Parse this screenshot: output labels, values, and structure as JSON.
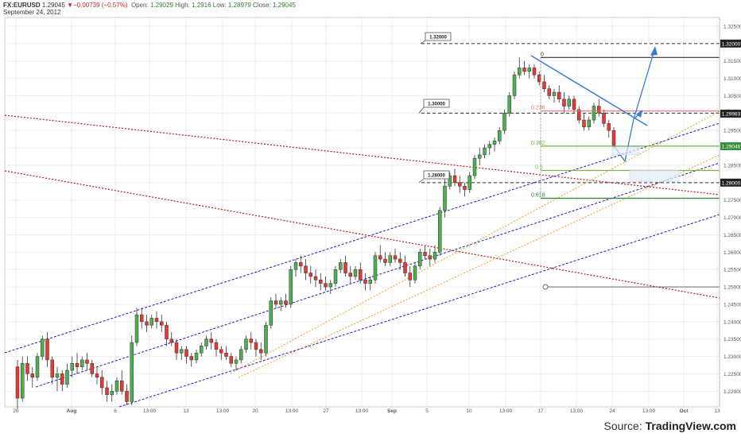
{
  "header": {
    "symbol": "FX:EURUSD",
    "last": "1.29045",
    "change": "▼−0.00739 (−0.57%)",
    "open_label": "Open:",
    "open": "1.29029",
    "high_label": "High:",
    "high": "1.2916",
    "low_label": "Low:",
    "low": "1.28979",
    "close_label": "Close:",
    "close": "1.29045",
    "date": "September 24, 2012"
  },
  "source": {
    "prefix": "Source: ",
    "brand": "TradingView.com"
  },
  "colors": {
    "bull": "#4caf50",
    "bear": "#e53935",
    "price_up_tag": "#388e3c",
    "channel": "#1a1acc",
    "red_dotted": "#b71c1c",
    "orange_dotted": "#f0a020",
    "trend": "#3a7bd5",
    "fib_red": "#e57373",
    "fib_green": "#7cb342",
    "fib_dkgreen": "#2e7d32",
    "grid": "#eeeeee"
  },
  "chart_data": {
    "type": "candlestick",
    "title": "",
    "ylim": [
      1.2155,
      1.3275
    ],
    "y_ticks": [
      "1.32500",
      "1.32000",
      "1.31500",
      "1.31000",
      "1.30500",
      "1.30000",
      "1.29500",
      "1.29000",
      "1.28500",
      "1.28000",
      "1.27500",
      "1.27000",
      "1.26500",
      "1.26000",
      "1.25500",
      "1.25000",
      "1.24500",
      "1.24000",
      "1.23500",
      "1.23000",
      "1.22500",
      "1.22000"
    ],
    "x_ticks": [
      "26",
      "Aug",
      "6",
      "13:00",
      "13",
      "13:00",
      "20",
      "13:00",
      "27",
      "13:00",
      "Sep",
      "5",
      "10",
      "13:00",
      "17",
      "13:00",
      "24",
      "13:00",
      "Oct",
      "13"
    ],
    "price_tags": [
      {
        "value": 1.32,
        "label": "1.32000",
        "style": "dark"
      },
      {
        "value": 1.29983,
        "label": "1.29983",
        "style": "dark"
      },
      {
        "value": 1.29046,
        "label": "1.29046",
        "style": "green"
      },
      {
        "value": 1.28,
        "label": "1.28000",
        "style": "dark"
      }
    ],
    "level_callouts": [
      {
        "value": 1.32,
        "label": "1.32000"
      },
      {
        "value": 1.3,
        "label": "1.30000"
      },
      {
        "value": 1.28,
        "label": "1.28000"
      }
    ],
    "fib_levels": [
      {
        "label": "0",
        "value": 1.316
      },
      {
        "label": "0.236",
        "value": 1.3006
      },
      {
        "label": "0.382",
        "value": 1.2905
      },
      {
        "label": "0.5",
        "value": 1.2835
      },
      {
        "label": "0.618",
        "value": 1.2755
      }
    ],
    "annotations": [
      {
        "label": "1.25000",
        "value": 1.25
      }
    ],
    "candles": [
      [
        1.227,
        1.229,
        1.215,
        1.218
      ],
      [
        1.218,
        1.23,
        1.217,
        1.228
      ],
      [
        1.228,
        1.23,
        1.223,
        1.225
      ],
      [
        1.225,
        1.227,
        1.221,
        1.224
      ],
      [
        1.224,
        1.231,
        1.223,
        1.23
      ],
      [
        1.23,
        1.236,
        1.229,
        1.235
      ],
      [
        1.235,
        1.237,
        1.227,
        1.229
      ],
      [
        1.229,
        1.23,
        1.222,
        1.224
      ],
      [
        1.224,
        1.227,
        1.22,
        1.225
      ],
      [
        1.225,
        1.226,
        1.22,
        1.222
      ],
      [
        1.222,
        1.228,
        1.221,
        1.226
      ],
      [
        1.226,
        1.23,
        1.224,
        1.228
      ],
      [
        1.228,
        1.231,
        1.225,
        1.227
      ],
      [
        1.227,
        1.23,
        1.226,
        1.229
      ],
      [
        1.229,
        1.231,
        1.226,
        1.228
      ],
      [
        1.228,
        1.229,
        1.224,
        1.225
      ],
      [
        1.225,
        1.227,
        1.222,
        1.224
      ],
      [
        1.224,
        1.226,
        1.219,
        1.221
      ],
      [
        1.221,
        1.223,
        1.217,
        1.219
      ],
      [
        1.219,
        1.222,
        1.217,
        1.22
      ],
      [
        1.22,
        1.224,
        1.219,
        1.223
      ],
      [
        1.223,
        1.226,
        1.219,
        1.22
      ],
      [
        1.22,
        1.222,
        1.216,
        1.217
      ],
      [
        1.217,
        1.236,
        1.216,
        1.234
      ],
      [
        1.234,
        1.244,
        1.233,
        1.242
      ],
      [
        1.242,
        1.244,
        1.238,
        1.24
      ],
      [
        1.24,
        1.242,
        1.237,
        1.239
      ],
      [
        1.239,
        1.242,
        1.238,
        1.241
      ],
      [
        1.241,
        1.243,
        1.238,
        1.24
      ],
      [
        1.24,
        1.242,
        1.237,
        1.239
      ],
      [
        1.239,
        1.24,
        1.233,
        1.235
      ],
      [
        1.235,
        1.237,
        1.233,
        1.234
      ],
      [
        1.234,
        1.235,
        1.229,
        1.231
      ],
      [
        1.231,
        1.233,
        1.229,
        1.232
      ],
      [
        1.232,
        1.233,
        1.228,
        1.23
      ],
      [
        1.23,
        1.231,
        1.227,
        1.229
      ],
      [
        1.229,
        1.232,
        1.228,
        1.231
      ],
      [
        1.231,
        1.234,
        1.23,
        1.233
      ],
      [
        1.233,
        1.236,
        1.232,
        1.235
      ],
      [
        1.235,
        1.237,
        1.232,
        1.234
      ],
      [
        1.234,
        1.235,
        1.23,
        1.232
      ],
      [
        1.232,
        1.233,
        1.229,
        1.231
      ],
      [
        1.231,
        1.233,
        1.229,
        1.23
      ],
      [
        1.23,
        1.231,
        1.227,
        1.228
      ],
      [
        1.228,
        1.23,
        1.226,
        1.229
      ],
      [
        1.229,
        1.233,
        1.228,
        1.232
      ],
      [
        1.232,
        1.236,
        1.231,
        1.235
      ],
      [
        1.235,
        1.237,
        1.232,
        1.234
      ],
      [
        1.234,
        1.235,
        1.23,
        1.232
      ],
      [
        1.232,
        1.234,
        1.229,
        1.231
      ],
      [
        1.231,
        1.24,
        1.23,
        1.239
      ],
      [
        1.239,
        1.247,
        1.238,
        1.246
      ],
      [
        1.246,
        1.248,
        1.244,
        1.245
      ],
      [
        1.245,
        1.247,
        1.243,
        1.246
      ],
      [
        1.246,
        1.248,
        1.244,
        1.245
      ],
      [
        1.245,
        1.256,
        1.244,
        1.255
      ],
      [
        1.255,
        1.258,
        1.253,
        1.257
      ],
      [
        1.257,
        1.259,
        1.254,
        1.256
      ],
      [
        1.256,
        1.258,
        1.252,
        1.254
      ],
      [
        1.254,
        1.256,
        1.251,
        1.253
      ],
      [
        1.253,
        1.255,
        1.25,
        1.252
      ],
      [
        1.252,
        1.254,
        1.249,
        1.251
      ],
      [
        1.251,
        1.253,
        1.249,
        1.25
      ],
      [
        1.25,
        1.252,
        1.248,
        1.251
      ],
      [
        1.251,
        1.256,
        1.25,
        1.255
      ],
      [
        1.255,
        1.258,
        1.254,
        1.257
      ],
      [
        1.257,
        1.259,
        1.253,
        1.254
      ],
      [
        1.254,
        1.256,
        1.251,
        1.253
      ],
      [
        1.253,
        1.256,
        1.252,
        1.255
      ],
      [
        1.255,
        1.257,
        1.251,
        1.252
      ],
      [
        1.252,
        1.254,
        1.249,
        1.251
      ],
      [
        1.251,
        1.253,
        1.249,
        1.252
      ],
      [
        1.252,
        1.26,
        1.251,
        1.259
      ],
      [
        1.259,
        1.262,
        1.257,
        1.258
      ],
      [
        1.258,
        1.26,
        1.256,
        1.257
      ],
      [
        1.257,
        1.26,
        1.256,
        1.259
      ],
      [
        1.259,
        1.261,
        1.257,
        1.258
      ],
      [
        1.258,
        1.26,
        1.255,
        1.257
      ],
      [
        1.257,
        1.259,
        1.253,
        1.254
      ],
      [
        1.254,
        1.256,
        1.25,
        1.252
      ],
      [
        1.252,
        1.257,
        1.251,
        1.256
      ],
      [
        1.256,
        1.261,
        1.255,
        1.26
      ],
      [
        1.26,
        1.262,
        1.258,
        1.259
      ],
      [
        1.259,
        1.261,
        1.256,
        1.258
      ],
      [
        1.258,
        1.262,
        1.257,
        1.26
      ],
      [
        1.26,
        1.273,
        1.259,
        1.272
      ],
      [
        1.272,
        1.281,
        1.27,
        1.279
      ],
      [
        1.279,
        1.283,
        1.278,
        1.282
      ],
      [
        1.282,
        1.284,
        1.279,
        1.28
      ],
      [
        1.28,
        1.282,
        1.277,
        1.279
      ],
      [
        1.279,
        1.28,
        1.276,
        1.278
      ],
      [
        1.278,
        1.283,
        1.277,
        1.282
      ],
      [
        1.282,
        1.288,
        1.281,
        1.287
      ],
      [
        1.287,
        1.29,
        1.285,
        1.288
      ],
      [
        1.288,
        1.291,
        1.287,
        1.29
      ],
      [
        1.29,
        1.292,
        1.288,
        1.291
      ],
      [
        1.291,
        1.293,
        1.289,
        1.292
      ],
      [
        1.292,
        1.296,
        1.291,
        1.295
      ],
      [
        1.295,
        1.301,
        1.294,
        1.3
      ],
      [
        1.3,
        1.306,
        1.299,
        1.305
      ],
      [
        1.305,
        1.312,
        1.304,
        1.311
      ],
      [
        1.311,
        1.316,
        1.31,
        1.313
      ],
      [
        1.313,
        1.315,
        1.311,
        1.312
      ],
      [
        1.312,
        1.314,
        1.31,
        1.313
      ],
      [
        1.313,
        1.314,
        1.31,
        1.311
      ],
      [
        1.311,
        1.312,
        1.308,
        1.309
      ],
      [
        1.309,
        1.311,
        1.306,
        1.307
      ],
      [
        1.307,
        1.308,
        1.304,
        1.305
      ],
      [
        1.305,
        1.307,
        1.303,
        1.306
      ],
      [
        1.306,
        1.308,
        1.303,
        1.304
      ],
      [
        1.304,
        1.306,
        1.3,
        1.302
      ],
      [
        1.302,
        1.305,
        1.301,
        1.304
      ],
      [
        1.304,
        1.305,
        1.3,
        1.301
      ],
      [
        1.301,
        1.302,
        1.297,
        1.298
      ],
      [
        1.298,
        1.3,
        1.295,
        1.296
      ],
      [
        1.296,
        1.299,
        1.295,
        1.298
      ],
      [
        1.298,
        1.303,
        1.297,
        1.302
      ],
      [
        1.302,
        1.304,
        1.299,
        1.3
      ],
      [
        1.3,
        1.301,
        1.296,
        1.297
      ],
      [
        1.297,
        1.298,
        1.293,
        1.295
      ],
      [
        1.295,
        1.296,
        1.2898,
        1.2905
      ]
    ]
  }
}
